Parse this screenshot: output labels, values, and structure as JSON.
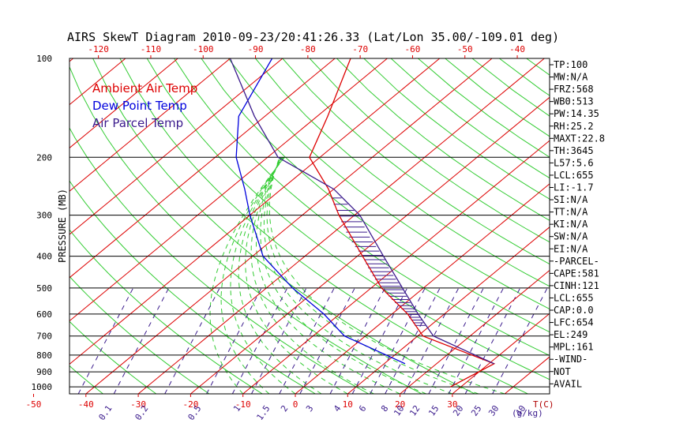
{
  "chart_data": {
    "type": "line",
    "title": "AIRS SkewT Diagram 2010-09-23/20:41:26.33 (Lat/Lon 35.00/-109.01 deg)",
    "ylabel": "PRESSURE (MB)",
    "xlabel_temp": "T(C)",
    "xlabel_mix": "(g/kg)",
    "y_scale": "log",
    "ylim": [
      1050,
      100
    ],
    "pressure_ticks": [
      100,
      200,
      300,
      400,
      500,
      600,
      700,
      800,
      900,
      1000
    ],
    "bottom_temp_ticks": [
      -50,
      -40,
      -30,
      -20,
      -10,
      0,
      10,
      20,
      30
    ],
    "top_temp_ticks": [
      -120,
      -110,
      -100,
      -90,
      -80,
      -70,
      -60,
      -50,
      -40
    ],
    "mixing_ratio_ticks": [
      "0.1",
      "0.2",
      "0.5",
      "1",
      "1.5",
      "2",
      "3",
      "4",
      "6",
      "8",
      "10",
      "12",
      "15",
      "20",
      "25",
      "30",
      "40"
    ],
    "legend": [
      {
        "name": "Ambient Air Temp",
        "color": "#dd0000"
      },
      {
        "name": "Dew Point Temp",
        "color": "#0000dd"
      },
      {
        "name": "Air Parcel Temp",
        "color": "#3a1a8c"
      }
    ],
    "grid": true,
    "series": [
      {
        "name": "Ambient Air Temp",
        "color": "#dd0000",
        "points": [
          [
            1000,
            28
          ],
          [
            850,
            31
          ],
          [
            700,
            11
          ],
          [
            600,
            3
          ],
          [
            500,
            -8
          ],
          [
            400,
            -19
          ],
          [
            300,
            -33
          ],
          [
            250,
            -41
          ],
          [
            200,
            -52
          ],
          [
            150,
            -58
          ],
          [
            100,
            -67
          ]
        ]
      },
      {
        "name": "Dew Point Temp",
        "color": "#0000dd",
        "points": [
          [
            850,
            14
          ],
          [
            700,
            -4
          ],
          [
            600,
            -13
          ],
          [
            500,
            -25
          ],
          [
            400,
            -38
          ],
          [
            300,
            -50
          ],
          [
            250,
            -57
          ],
          [
            200,
            -66
          ],
          [
            150,
            -75
          ],
          [
            100,
            -82
          ]
        ]
      },
      {
        "name": "Air Parcel Temp",
        "color": "#3a1a8c",
        "points": [
          [
            850,
            31
          ],
          [
            700,
            13
          ],
          [
            600,
            5
          ],
          [
            500,
            -4
          ],
          [
            400,
            -15
          ],
          [
            300,
            -29
          ],
          [
            250,
            -40
          ],
          [
            200,
            -58
          ],
          [
            150,
            -72
          ],
          [
            100,
            -90
          ]
        ]
      }
    ]
  },
  "stats": [
    "TP:100",
    "MW:N/A",
    "FRZ:568",
    "WB0:513",
    "PW:14.35",
    "RH:25.2",
    "MAXT:22.8",
    "TH:3645",
    "L57:5.6",
    "LCL:655",
    "LI:-1.7",
    "SI:N/A",
    "TT:N/A",
    "KI:N/A",
    "SW:N/A",
    "EI:N/A",
    "-PARCEL-",
    "CAPE:581",
    "CINH:121",
    "LCL:655",
    "CAP:0.0",
    "LFC:654",
    "EL:249",
    "MPL:161",
    "-WIND-",
    "NOT",
    "AVAIL"
  ]
}
